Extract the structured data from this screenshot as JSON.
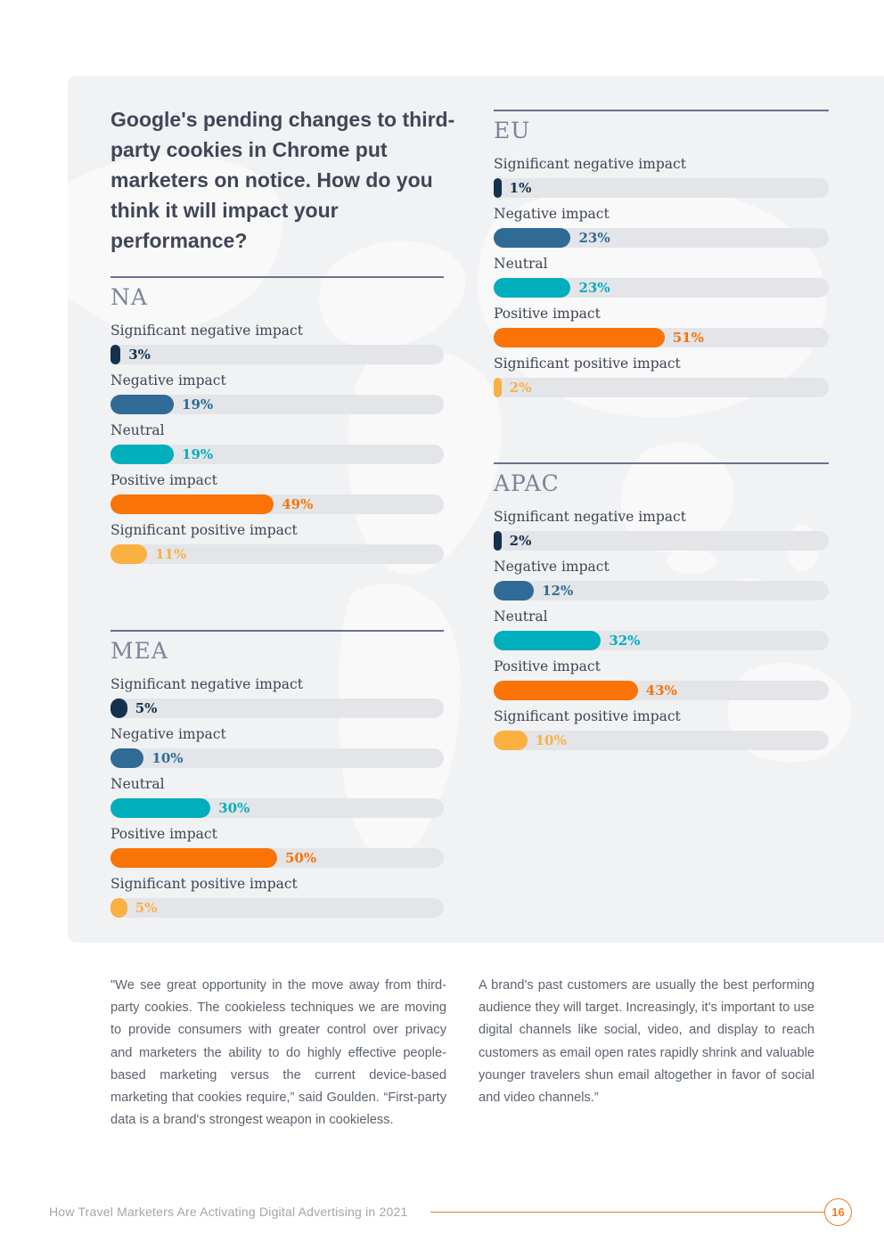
{
  "page": {
    "title": "Google's pending changes to third-party cookies in Chrome put marketers on notice. How do you think it will impact your performance?",
    "quote_left": "\"We see great opportunity in the move away from third-party cookies. The cookieless techniques we are moving to provide consumers with greater control over privacy and marketers the ability to do highly effective people-based marketing versus the current device-based marketing that cookies require,” said Goulden. “First-party data is a brand's strongest weapon in cookieless.",
    "quote_right": "A brand's past customers are usually the best performing audience they will target. Increasingly, it's important to use digital channels like social, video, and display to reach customers as email open rates rapidly shrink and valuable younger travelers shun email altogether in favor of social and video channels.”",
    "footer_text": "How Travel Marketers Are Activating Digital Advertising in 2021",
    "page_number": "16"
  },
  "colors": {
    "significant_negative": "#14324e",
    "negative": "#2f6b95",
    "neutral": "#01aebc",
    "positive": "#f97306",
    "significant_positive": "#fbb042",
    "panel_background": "#f1f2f4",
    "bar_track": "#e3e5e9",
    "section_rule": "#6a7190",
    "footer_accent": "#e87e23"
  },
  "regions": [
    {
      "name": "NA",
      "bars": [
        {
          "label": "Significant negative impact",
          "value": 3,
          "display": "3%"
        },
        {
          "label": "Negative impact",
          "value": 19,
          "display": "19%"
        },
        {
          "label": "Neutral",
          "value": 19,
          "display": "19%"
        },
        {
          "label": "Positive impact",
          "value": 49,
          "display": "49%"
        },
        {
          "label": "Significant positive impact",
          "value": 11,
          "display": "11%"
        }
      ]
    },
    {
      "name": "EU",
      "bars": [
        {
          "label": "Significant negative impact",
          "value": 1,
          "display": "1%"
        },
        {
          "label": "Negative impact",
          "value": 23,
          "display": "23%"
        },
        {
          "label": "Neutral",
          "value": 23,
          "display": "23%"
        },
        {
          "label": "Positive impact",
          "value": 51,
          "display": "51%"
        },
        {
          "label": "Significant positive impact",
          "value": 2,
          "display": "2%"
        }
      ]
    },
    {
      "name": "MEA",
      "bars": [
        {
          "label": "Significant negative impact",
          "value": 5,
          "display": "5%"
        },
        {
          "label": "Negative impact",
          "value": 10,
          "display": "10%"
        },
        {
          "label": "Neutral",
          "value": 30,
          "display": "30%"
        },
        {
          "label": "Positive impact",
          "value": 50,
          "display": "50%"
        },
        {
          "label": "Significant positive impact",
          "value": 5,
          "display": "5%"
        }
      ]
    },
    {
      "name": "APAC",
      "bars": [
        {
          "label": "Significant negative impact",
          "value": 2,
          "display": "2%"
        },
        {
          "label": "Negative impact",
          "value": 12,
          "display": "12%"
        },
        {
          "label": "Neutral",
          "value": 32,
          "display": "32%"
        },
        {
          "label": "Positive impact",
          "value": 43,
          "display": "43%"
        },
        {
          "label": "Significant positive impact",
          "value": 10,
          "display": "10%"
        }
      ]
    }
  ],
  "chart_data": {
    "type": "bar",
    "orientation": "horizontal",
    "unit": "%",
    "title": "Google's pending changes to third-party cookies in Chrome put marketers on notice. How do you think it will impact your performance?",
    "categories": [
      "Significant negative impact",
      "Negative impact",
      "Neutral",
      "Positive impact",
      "Significant positive impact"
    ],
    "series": [
      {
        "name": "NA",
        "values": [
          3,
          19,
          19,
          49,
          11
        ]
      },
      {
        "name": "EU",
        "values": [
          1,
          23,
          23,
          51,
          2
        ]
      },
      {
        "name": "MEA",
        "values": [
          5,
          10,
          30,
          50,
          5
        ]
      },
      {
        "name": "APAC",
        "values": [
          2,
          12,
          32,
          43,
          10
        ]
      }
    ],
    "xlim": [
      0,
      100
    ],
    "grid": false,
    "legend": false
  }
}
